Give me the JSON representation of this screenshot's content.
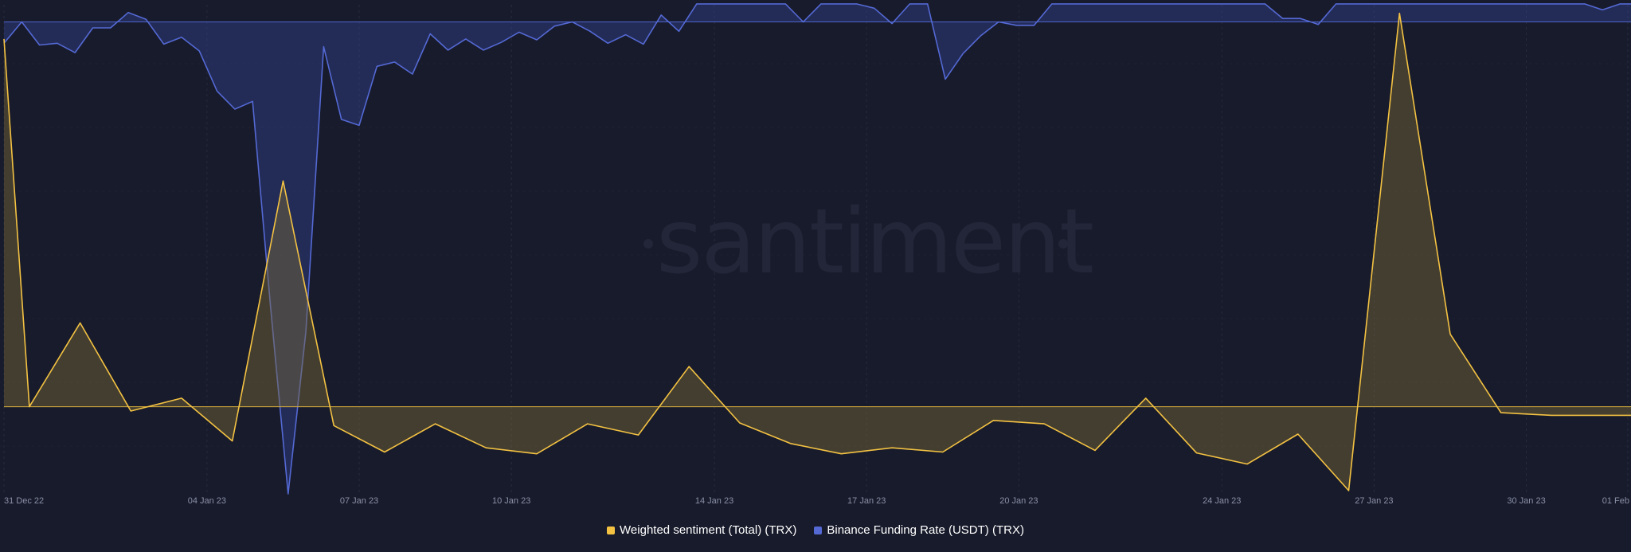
{
  "watermark": "santiment",
  "colors": {
    "background": "#181b2b",
    "grid": "#272b3d",
    "sentiment": "#f3c242",
    "funding": "#5469d4"
  },
  "legend": {
    "items": [
      {
        "label": "Weighted sentiment (Total) (TRX)",
        "color": "#f3c242"
      },
      {
        "label": "Binance Funding Rate (USDT) (TRX)",
        "color": "#5469d4"
      }
    ]
  },
  "chart_data": {
    "type": "area",
    "x_axis": {
      "ticks": [
        "31 Dec 22",
        "04 Jan 23",
        "07 Jan 23",
        "10 Jan 23",
        "14 Jan 23",
        "17 Jan 23",
        "20 Jan 23",
        "24 Jan 23",
        "27 Jan 23",
        "30 Jan 23",
        "01 Feb"
      ],
      "range": [
        "2022-12-31",
        "2023-02-01"
      ]
    },
    "grid": true,
    "legend_position": "bottom-center",
    "series": [
      {
        "name": "Weighted sentiment (Total) (TRX)",
        "axis": "left",
        "ylim": [
          -1.0,
          4.7
        ],
        "baseline": 0,
        "x": [
          0,
          0.5,
          1.5,
          2.5,
          3.5,
          4.5,
          5.5,
          6.5,
          7.5,
          8.5,
          9.5,
          10.5,
          11.5,
          12.5,
          13.5,
          14.5,
          15.5,
          16.5,
          17.5,
          18.5,
          19.5,
          20.5,
          21.5,
          22.5,
          23.5,
          24.5,
          25.5,
          26.5,
          27.5,
          28.5,
          29.5,
          30.5,
          31.5,
          32.5
        ],
        "values": [
          4.3,
          0.0,
          0.98,
          -0.05,
          0.1,
          -0.4,
          2.64,
          -0.22,
          -0.53,
          -0.2,
          -0.48,
          -0.55,
          -0.2,
          -0.33,
          0.47,
          -0.19,
          -0.43,
          -0.55,
          -0.48,
          -0.53,
          -0.16,
          -0.2,
          -0.51,
          0.1,
          -0.54,
          -0.67,
          -0.32,
          -0.98,
          4.6,
          0.85,
          -0.07,
          -0.1,
          -0.1,
          -0.1
        ]
      },
      {
        "name": "Binance Funding Rate (USDT) (TRX)",
        "axis": "right",
        "ylim": [
          -0.055,
          0.002
        ],
        "baseline": 0,
        "x": [
          0,
          0.35,
          0.7,
          1.05,
          1.4,
          1.75,
          2.1,
          2.45,
          2.8,
          3.15,
          3.5,
          3.85,
          4.2,
          4.55,
          4.9,
          5.25,
          5.6,
          5.95,
          6.3,
          6.65,
          7.0,
          7.35,
          7.7,
          8.05,
          8.4,
          8.75,
          9.1,
          9.45,
          9.8,
          10.15,
          10.5,
          10.85,
          11.2,
          11.55,
          11.9,
          12.25,
          12.6,
          12.95,
          13.3,
          13.65,
          14.0,
          14.35,
          14.7,
          15.05,
          15.4,
          15.75,
          16.1,
          16.45,
          16.8,
          17.15,
          17.5,
          17.85,
          18.2,
          18.55,
          18.9,
          19.25,
          19.6,
          19.95,
          20.3,
          20.65,
          21.0,
          21.35,
          21.7,
          22.05,
          22.4,
          22.75,
          23.1,
          23.45,
          23.8,
          24.15,
          24.5,
          24.85,
          25.2,
          25.55,
          25.9,
          26.25,
          26.6,
          26.95,
          27.3,
          27.65,
          28.0,
          28.35,
          28.7,
          29.05,
          29.4,
          29.75,
          30.1,
          30.45,
          30.8,
          31.15,
          31.5,
          31.85,
          32.2,
          32.55,
          32.7
        ],
        "values": [
          -0.0025,
          0.0,
          -0.0027,
          -0.0025,
          -0.0036,
          -0.0007,
          -0.0007,
          0.0011,
          0.0003,
          -0.0026,
          -0.0018,
          -0.0034,
          -0.0081,
          -0.0102,
          -0.0093,
          -0.0331,
          -0.0552,
          -0.0362,
          -0.0029,
          -0.0114,
          -0.0121,
          -0.0052,
          -0.0047,
          -0.0061,
          -0.0014,
          -0.0033,
          -0.002,
          -0.0033,
          -0.0024,
          -0.0012,
          -0.0021,
          -0.0005,
          0.0,
          -0.0011,
          -0.0025,
          -0.0015,
          -0.0026,
          0.0008,
          -0.0011,
          0.0021,
          0.0021,
          0.0021,
          0.0021,
          0.0021,
          0.0021,
          0.0,
          0.0021,
          0.0021,
          0.0021,
          0.0016,
          -0.0002,
          0.0021,
          0.0021,
          -0.0067,
          -0.0037,
          -0.0016,
          0.0,
          -0.0004,
          -0.0004,
          0.0021,
          0.0021,
          0.0021,
          0.0021,
          0.0021,
          0.0021,
          0.0021,
          0.0021,
          0.0021,
          0.0021,
          0.0021,
          0.0021,
          0.0021,
          0.0004,
          0.0004,
          -0.0003,
          0.0021,
          0.0021,
          0.0021,
          0.0021,
          0.0021,
          0.0021,
          0.0021,
          0.0021,
          0.0021,
          0.0021,
          0.0021,
          0.0021,
          0.0021,
          0.0021,
          0.0021,
          0.0014,
          0.0021,
          0.0021,
          0.0021,
          0.0014
        ]
      }
    ]
  }
}
